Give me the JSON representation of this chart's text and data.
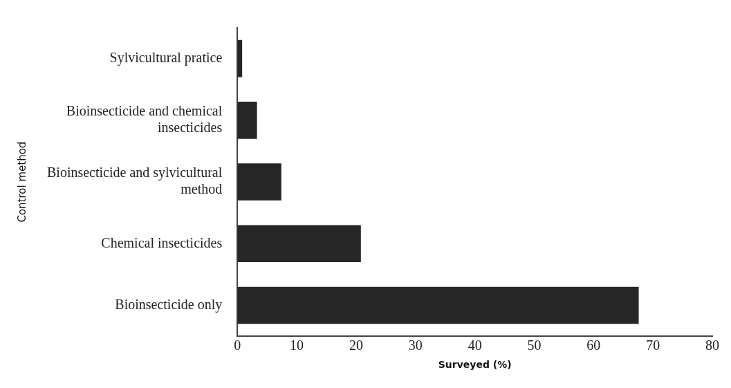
{
  "chart_data": {
    "type": "bar",
    "orientation": "horizontal",
    "xlabel": "Surveyed (%)",
    "ylabel": "Control method",
    "categories": [
      "Sylvicultural pratice",
      "Bioinsecticide and chemical insecticides",
      "Bioinsecticide and sylvicultural method",
      "Chemical insecticides",
      "Bioinsecticide only"
    ],
    "values": [
      0.8,
      3.3,
      7.4,
      20.8,
      67.6
    ],
    "color": "#262626",
    "xlim": [
      0,
      80
    ],
    "xticks": [
      0,
      10,
      20,
      30,
      40,
      50,
      60,
      70,
      80
    ],
    "grid": false,
    "legend": false
  }
}
